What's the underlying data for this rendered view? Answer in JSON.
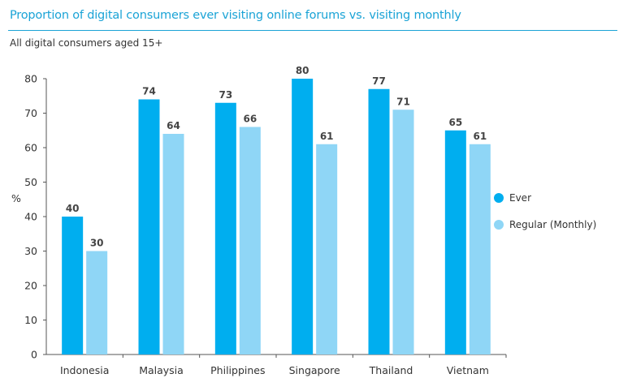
{
  "title": "Proportion of digital consumers ever visiting online forums vs. visiting monthly",
  "subtitle": "All digital consumers aged 15+",
  "colors": {
    "title": "#1aa3d6",
    "ever": "#00aeef",
    "regular": "#8fd6f6"
  },
  "chart_data": {
    "type": "bar",
    "title": "Proportion of digital consumers ever visiting online forums vs. visiting monthly",
    "subtitle": "All digital consumers aged 15+",
    "xlabel": "",
    "ylabel": "%",
    "ylim": [
      0,
      80
    ],
    "yticks": [
      0,
      10,
      20,
      30,
      40,
      50,
      60,
      70,
      80
    ],
    "grid": false,
    "legend_position": "right",
    "categories": [
      "Indonesia",
      "Malaysia",
      "Philippines",
      "Singapore",
      "Thailand",
      "Vietnam"
    ],
    "series": [
      {
        "name": "Ever",
        "color": "#00aeef",
        "values": [
          40,
          74,
          73,
          80,
          77,
          65
        ]
      },
      {
        "name": "Regular (Monthly)",
        "color": "#8fd6f6",
        "values": [
          30,
          64,
          66,
          61,
          71,
          61
        ]
      }
    ]
  }
}
